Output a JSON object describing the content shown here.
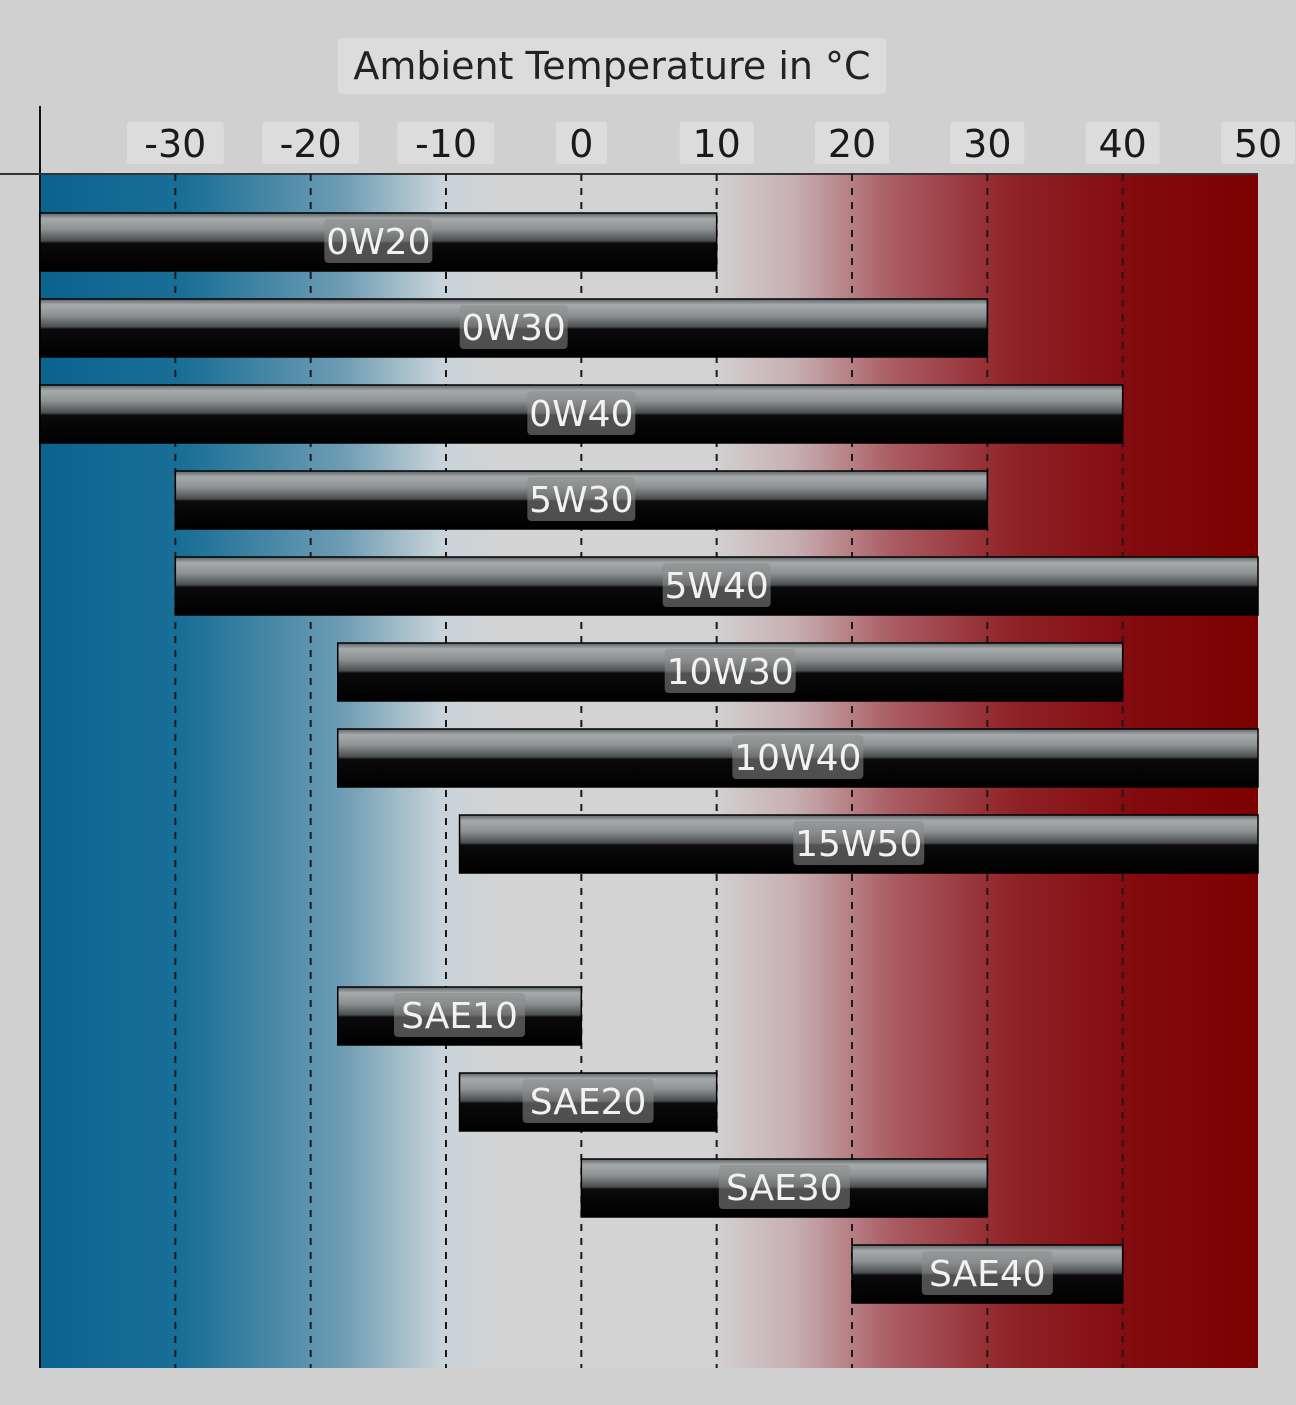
{
  "chart_data": {
    "type": "bar",
    "orientation": "horizontal-range",
    "title": "Ambient Temperature in °C",
    "x_ticks": [
      "-30",
      "-20",
      "-10",
      "0",
      "10",
      "20",
      "30",
      "40",
      "50"
    ],
    "x_tick_values": [
      -30,
      -20,
      -10,
      0,
      10,
      20,
      30,
      40,
      50
    ],
    "xlim": [
      -40,
      50
    ],
    "grid": "vertical dashed",
    "background_gradient": [
      "#0a6390",
      "#d3d3d3",
      "#d3d3d3",
      "#7c0000"
    ],
    "series": [
      {
        "name": "0W20",
        "start": -40,
        "end": 10
      },
      {
        "name": "0W30",
        "start": -40,
        "end": 30
      },
      {
        "name": "0W40",
        "start": -40,
        "end": 40
      },
      {
        "name": "5W30",
        "start": -30,
        "end": 30
      },
      {
        "name": "5W40",
        "start": -30,
        "end": 50
      },
      {
        "name": "10W30",
        "start": -18,
        "end": 40
      },
      {
        "name": "10W40",
        "start": -18,
        "end": 50
      },
      {
        "name": "15W50",
        "start": -9,
        "end": 50
      },
      {
        "name": "SAE10",
        "start": -18,
        "end": 0
      },
      {
        "name": "SAE20",
        "start": -9,
        "end": 10
      },
      {
        "name": "SAE30",
        "start": 0,
        "end": 30
      },
      {
        "name": "SAE40",
        "start": 20,
        "end": 40
      }
    ]
  }
}
